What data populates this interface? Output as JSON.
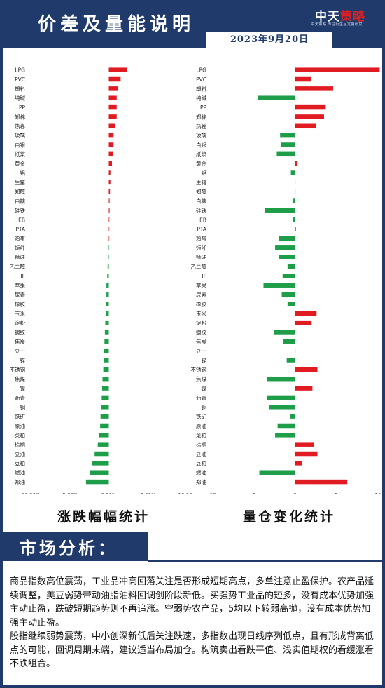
{
  "header": {
    "title": "价差及量能说明",
    "brand_main": "中天",
    "brand_accent": "策略",
    "slogan": "中天策略  专注衍生品定量研究",
    "date": "2023年9月20日"
  },
  "captions": {
    "left": "涨跌幅幅统计",
    "right": "量仓变化统计"
  },
  "section": {
    "label": "市场分析："
  },
  "analysis": {
    "paragraphs": [
      "商品指数高位震荡，工业品冲高回落关注是否形成短期高点，多单注意止盈保护。农产品延续调整，美豆弱势带动油脂油料回调创阶段新低。买强势工业品的短多，没有成本优势加强主动止盈，跌破短期趋势则不再追涨。空弱势农产品，5均以下转弱高抛，没有成本优势加强主动止盈。",
      "股指继续弱势震荡，中小创深新低后关注跌速，多指数出现日线序列低点，且有形成背离低点的可能，回调周期末端，建议适当布局加仓。构筑卖出看跌平值、浅实值期权的看缓涨看不跌组合。"
    ]
  },
  "colors": {
    "positive": "#e11b22",
    "negative": "#1f9e4a",
    "navy": "#1f3a6b"
  },
  "chart_data": [
    {
      "type": "bar",
      "orientation": "horizontal",
      "categories": [
        "LPG",
        "PVC",
        "塑料",
        "纯碱",
        "PP",
        "郑棉",
        "热卷",
        "玻璃",
        "白银",
        "纸浆",
        "黄金",
        "铝",
        "生猪",
        "郑醇",
        "白糖",
        "硅铁",
        "EB",
        "PTA",
        "鸡蛋",
        "短纤",
        "锰硅",
        "乙二醇",
        "IF",
        "苹果",
        "尿素",
        "橡胶",
        "玉米",
        "淀粉",
        "螺纹",
        "焦炭",
        "豆一",
        "锌",
        "不锈钢",
        "焦煤",
        "镍",
        "沥青",
        "铜",
        "铁矿",
        "原油",
        "菜粕",
        "棕榈",
        "豆油",
        "豆粕",
        "燃油",
        "郑油"
      ],
      "values": [
        2.3,
        1.5,
        1.2,
        1.0,
        1.0,
        1.0,
        0.8,
        0.6,
        0.6,
        0.5,
        0.4,
        0.2,
        0.2,
        0.15,
        0.1,
        0.1,
        0.05,
        0.0,
        0.0,
        -0.1,
        -0.1,
        -0.15,
        -0.2,
        -0.3,
        -0.3,
        -0.35,
        -0.4,
        -0.45,
        -0.5,
        -0.55,
        -0.6,
        -0.65,
        -0.7,
        -0.8,
        -0.85,
        -0.9,
        -1.0,
        -1.05,
        -1.1,
        -1.2,
        -1.4,
        -1.8,
        -2.1,
        -2.4,
        -2.9
      ],
      "xlim": [
        -10,
        10
      ],
      "xticks": [
        "-10.00%",
        "-5.00%",
        "0.00%",
        "5.00%",
        "10.00%"
      ],
      "xtick_values": [
        -10,
        -5,
        0,
        5,
        10
      ]
    },
    {
      "type": "bar",
      "orientation": "horizontal",
      "categories": [
        "LPG",
        "PVC",
        "塑料",
        "纯碱",
        "PP",
        "郑棉",
        "热卷",
        "玻璃",
        "白银",
        "纸浆",
        "黄金",
        "铝",
        "生猪",
        "郑醇",
        "白糖",
        "硅铁",
        "EB",
        "PTA",
        "鸡蛋",
        "短纤",
        "锰硅",
        "乙二醇",
        "IF",
        "苹果",
        "尿素",
        "橡胶",
        "玉米",
        "淀粉",
        "螺纹",
        "焦炭",
        "豆一",
        "锌",
        "不锈钢",
        "焦煤",
        "镍",
        "沥青",
        "铜",
        "铁矿",
        "原油",
        "菜粕",
        "棕榈",
        "豆油",
        "豆粕",
        "燃油",
        "郑油"
      ],
      "values": [
        10.2,
        1.9,
        4.6,
        -4.5,
        3.7,
        3.5,
        2.5,
        -1.8,
        -1.7,
        -2.2,
        0.3,
        -0.5,
        0.0,
        0.0,
        -0.3,
        -3.6,
        -0.3,
        0.1,
        -1.9,
        -2.4,
        -1.9,
        -0.9,
        -1.5,
        -3.8,
        -1.6,
        -0.9,
        2.6,
        2.0,
        -2.5,
        -1.4,
        0.0,
        -1.0,
        2.7,
        -3.4,
        2.1,
        -3.4,
        -3.1,
        -0.6,
        -2.1,
        -2.4,
        2.3,
        2.7,
        0.8,
        -4.3,
        6.3
      ],
      "xlim": [
        -10,
        10
      ],
      "xticks": [
        "-10",
        "-5",
        "0",
        "5",
        "10"
      ],
      "xtick_values": [
        -10,
        -5,
        0,
        5,
        10
      ]
    }
  ]
}
